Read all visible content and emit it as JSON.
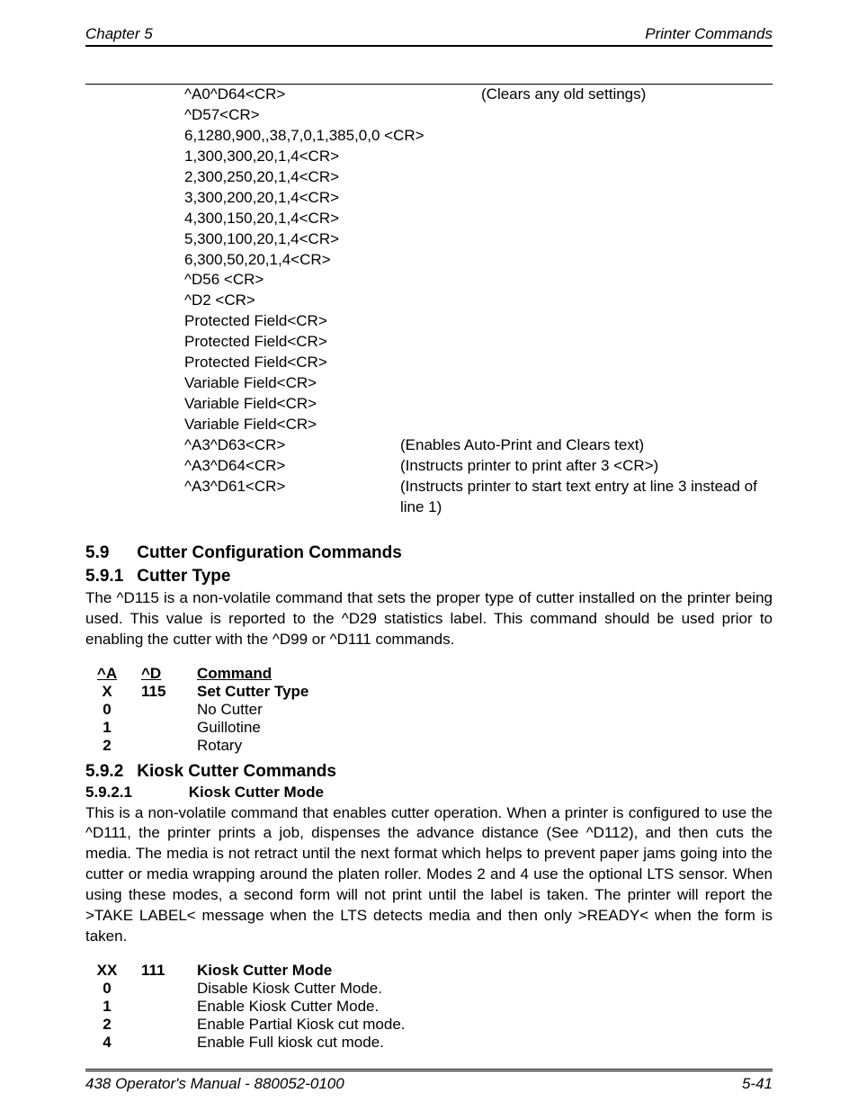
{
  "header": {
    "left": "Chapter 5",
    "right": "Printer Commands"
  },
  "code_block": {
    "row1_left": "^A0^D64<CR>",
    "row1_right": "(Clears any old settings)",
    "lines": [
      "^D57<CR>",
      "6,1280,900,,38,7,0,1,385,0,0 <CR>",
      "1,300,300,20,1,4<CR>",
      "2,300,250,20,1,4<CR>",
      "3,300,200,20,1,4<CR>",
      "4,300,150,20,1,4<CR>",
      "5,300,100,20,1,4<CR>",
      "6,300,50,20,1,4<CR>",
      "^D56 <CR>",
      "^D2 <CR>",
      "Protected Field<CR>",
      "Protected Field<CR>",
      "Protected Field<CR>",
      "Variable Field<CR>",
      "Variable Field<CR>",
      "Variable Field<CR>"
    ],
    "row_a_left": "^A3^D63<CR>",
    "row_a_right": "(Enables Auto-Print and Clears text)",
    "row_b_left": "^A3^D64<CR>",
    "row_b_right": "(Instructs printer to print after 3 <CR>)",
    "row_c_left": "^A3^D61<CR>",
    "row_c_right": "(Instructs printer to start text entry at line 3 instead of line 1)"
  },
  "section59": {
    "num": "5.9",
    "title": "Cutter Configuration Commands"
  },
  "section591": {
    "num": "5.9.1",
    "title": "Cutter Type",
    "body": "The ^D115 is a non-volatile command that sets the proper type of cutter installed on the printer being used.  This value is reported to the ^D29 statistics label.  This command should be used prior to enabling the cutter with the ^D99 or ^D111 commands.",
    "table": {
      "h1": "^A",
      "h2": "^D",
      "h3": "Command",
      "r0c1": "X",
      "r0c2": "115",
      "r0c3": "Set Cutter Type",
      "r1c1": "0",
      "r1c3": "No Cutter",
      "r2c1": "1",
      "r2c3": "Guillotine",
      "r3c1": "2",
      "r3c3": "Rotary"
    }
  },
  "section592": {
    "num": "5.9.2",
    "title": "Kiosk Cutter Commands"
  },
  "section5921": {
    "num": "5.9.2.1",
    "title": "Kiosk Cutter Mode",
    "body": "This is a non-volatile command that enables cutter operation.  When a printer is configured to use the ^D111, the printer prints a job, dispenses the advance distance (See ^D112), and then cuts the media.  The media is not retract until the next format which helps to prevent paper jams going into the cutter or media wrapping around the platen roller.  Modes 2 and 4 use the optional LTS sensor.  When using these modes, a second form will not print until the label is taken.  The printer will report the >TAKE LABEL< message when the LTS detects media and then only >READY< when the form is taken.",
    "table": {
      "r0c1": "XX",
      "r0c2": "111",
      "r0c3": "Kiosk Cutter Mode",
      "r1c1": "0",
      "r1c3": "Disable Kiosk Cutter Mode.",
      "r2c1": "1",
      "r2c3": "Enable Kiosk Cutter Mode.",
      "r3c1": "2",
      "r3c3": "Enable Partial Kiosk cut mode.",
      "r4c1": "4",
      "r4c3": "Enable Full kiosk cut mode."
    }
  },
  "footer": {
    "left": "438 Operator's Manual - 880052-0100",
    "right": "5-41"
  }
}
